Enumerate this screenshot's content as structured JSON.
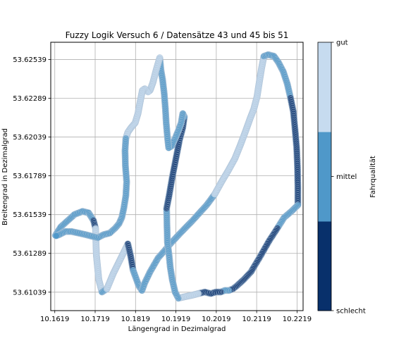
{
  "chart_data": {
    "type": "scatter",
    "title": "Fuzzy Logik Versuch 6 / Datensätze 43 und 45 bis 51",
    "xlabel": "Längengrad in Dezimalgrad",
    "ylabel": "Breitengrad in Dezimalgrad",
    "xlim": [
      10.1609,
      10.2234
    ],
    "ylim": [
      53.6092,
      53.6265
    ],
    "xticks": [
      10.1619,
      10.1719,
      10.1819,
      10.1919,
      10.2019,
      10.2119,
      10.2219
    ],
    "xtick_labels": [
      "10.1619",
      "10.1719",
      "10.1819",
      "10.1919",
      "10.2019",
      "10.2119",
      "10.2219"
    ],
    "yticks": [
      53.61039,
      53.61289,
      53.61539,
      53.61789,
      53.62039,
      53.62289,
      53.62539
    ],
    "ytick_labels": [
      "53.61039",
      "53.61289",
      "53.61539",
      "53.61789",
      "53.62039",
      "53.62289",
      "53.62539"
    ],
    "grid": true,
    "colorbar": {
      "label": "Fahrqualität",
      "levels": [
        "schlecht",
        "mittel",
        "gut"
      ],
      "colors": [
        "#08306b",
        "#4f98c9",
        "#c6dbef"
      ],
      "ticks": [
        {
          "label": "schlecht",
          "value": 0
        },
        {
          "label": "mittel",
          "value": 0.5
        },
        {
          "label": "gut",
          "value": 1
        }
      ]
    },
    "point_style": {
      "edge": "#b0c4d8",
      "alpha": 0.85
    },
    "segments": [
      {
        "quality": "mittel",
        "points": [
          [
            10.16205,
            53.61405
          ],
          [
            10.1634,
            53.6146
          ],
          [
            10.1668,
            53.6154
          ],
          [
            10.1688,
            53.6156
          ],
          [
            10.1703,
            53.6155
          ],
          [
            10.1715,
            53.615
          ]
        ]
      },
      {
        "quality": "schlecht",
        "points": [
          [
            10.1715,
            53.615
          ],
          [
            10.172,
            53.6145
          ]
        ]
      },
      {
        "quality": "gut",
        "points": [
          [
            10.172,
            53.6145
          ],
          [
            10.1722,
            53.6128
          ],
          [
            10.1728,
            53.6112
          ],
          [
            10.1736,
            53.6104
          ]
        ]
      },
      {
        "quality": "mittel",
        "points": [
          [
            10.1736,
            53.6104
          ],
          [
            10.1748,
            53.6106
          ]
        ]
      },
      {
        "quality": "gut",
        "points": [
          [
            10.1748,
            53.6106
          ],
          [
            10.1764,
            53.6116
          ],
          [
            10.1783,
            53.6126
          ],
          [
            10.18,
            53.6135
          ]
        ]
      },
      {
        "quality": "schlecht",
        "points": [
          [
            10.18,
            53.6135
          ],
          [
            10.1807,
            53.6127
          ],
          [
            10.1813,
            53.6118
          ]
        ]
      },
      {
        "quality": "mittel",
        "points": [
          [
            10.1813,
            53.6118
          ],
          [
            10.1827,
            53.6108
          ],
          [
            10.1835,
            53.6105
          ]
        ]
      },
      {
        "quality": "mittel",
        "points": [
          [
            10.1835,
            53.6105
          ],
          [
            10.1842,
            53.611
          ],
          [
            10.1855,
            53.6117
          ],
          [
            10.1875,
            53.6126
          ],
          [
            10.1892,
            53.6131
          ],
          [
            10.1905,
            53.6135
          ],
          [
            10.193,
            53.6142
          ],
          [
            10.196,
            53.615
          ],
          [
            10.1995,
            53.616
          ],
          [
            10.2015,
            53.6167
          ]
        ]
      },
      {
        "quality": "gut",
        "points": [
          [
            10.2015,
            53.6167
          ],
          [
            10.2032,
            53.6175
          ],
          [
            10.2048,
            53.6182
          ],
          [
            10.2065,
            53.619
          ],
          [
            10.2079,
            53.6199
          ],
          [
            10.2092,
            53.6208
          ],
          [
            10.2103,
            53.6216
          ],
          [
            10.2112,
            53.6222
          ],
          [
            10.212,
            53.623
          ],
          [
            10.2126,
            53.624
          ],
          [
            10.2131,
            53.6248
          ],
          [
            10.2137,
            53.6256
          ]
        ]
      },
      {
        "quality": "mittel",
        "points": [
          [
            10.2137,
            53.6256
          ],
          [
            10.2148,
            53.6257
          ],
          [
            10.2162,
            53.6256
          ],
          [
            10.2173,
            53.6252
          ],
          [
            10.2185,
            53.6246
          ],
          [
            10.2195,
            53.6238
          ],
          [
            10.2203,
            53.6229
          ]
        ]
      },
      {
        "quality": "schlecht",
        "points": [
          [
            10.2203,
            53.6229
          ],
          [
            10.221,
            53.622
          ],
          [
            10.2214,
            53.6209
          ],
          [
            10.2218,
            53.6197
          ],
          [
            10.222,
            53.6185
          ]
        ]
      },
      {
        "quality": "schlecht",
        "points": [
          [
            10.222,
            53.6185
          ],
          [
            10.2221,
            53.6172
          ],
          [
            10.2221,
            53.616
          ]
        ]
      },
      {
        "quality": "mittel",
        "points": [
          [
            10.2221,
            53.616
          ],
          [
            10.2205,
            53.6156
          ],
          [
            10.2187,
            53.6152
          ],
          [
            10.217,
            53.6145
          ]
        ]
      },
      {
        "quality": "schlecht",
        "points": [
          [
            10.217,
            53.6145
          ],
          [
            10.215,
            53.6137
          ],
          [
            10.2128,
            53.6127
          ],
          [
            10.2105,
            53.6117
          ],
          [
            10.2087,
            53.6112
          ],
          [
            10.207,
            53.6108
          ],
          [
            10.206,
            53.6106
          ],
          [
            10.205,
            53.6105
          ]
        ]
      },
      {
        "quality": "mittel",
        "points": [
          [
            10.205,
            53.6105
          ],
          [
            10.204,
            53.6105
          ],
          [
            10.203,
            53.6104
          ]
        ]
      },
      {
        "quality": "schlecht",
        "points": [
          [
            10.203,
            53.6104
          ],
          [
            10.2018,
            53.6104
          ],
          [
            10.2005,
            53.6103
          ],
          [
            10.199,
            53.6104
          ],
          [
            10.1975,
            53.6103
          ]
        ]
      },
      {
        "quality": "gut",
        "points": [
          [
            10.1975,
            53.6103
          ],
          [
            10.196,
            53.6102
          ],
          [
            10.1942,
            53.6101
          ],
          [
            10.1925,
            53.61
          ]
        ]
      },
      {
        "quality": "mittel",
        "points": [
          [
            10.1925,
            53.61
          ],
          [
            10.1917,
            53.6104
          ],
          [
            10.191,
            53.6112
          ],
          [
            10.1905,
            53.612
          ],
          [
            10.1902,
            53.6128
          ]
        ]
      },
      {
        "quality": "mittel",
        "points": [
          [
            10.1902,
            53.6128
          ],
          [
            10.1898,
            53.6136
          ],
          [
            10.1897,
            53.6146
          ],
          [
            10.1896,
            53.6158
          ]
        ]
      },
      {
        "quality": "schlecht",
        "points": [
          [
            10.1896,
            53.6158
          ],
          [
            10.1902,
            53.6166
          ],
          [
            10.191,
            53.6178
          ],
          [
            10.1919,
            53.619
          ],
          [
            10.1928,
            53.6202
          ],
          [
            10.1936,
            53.621
          ],
          [
            10.194,
            53.6217
          ]
        ]
      },
      {
        "quality": "mittel",
        "points": [
          [
            10.194,
            53.6217
          ],
          [
            10.1936,
            53.6219
          ],
          [
            10.1932,
            53.6213
          ],
          [
            10.1925,
            53.6208
          ],
          [
            10.1917,
            53.6203
          ],
          [
            10.1908,
            53.6198
          ]
        ]
      },
      {
        "quality": "mittel",
        "points": [
          [
            10.1908,
            53.6198
          ],
          [
            10.1901,
            53.6197
          ],
          [
            10.1898,
            53.6204
          ],
          [
            10.1895,
            53.6213
          ],
          [
            10.1893,
            53.6222
          ],
          [
            10.189,
            53.6232
          ],
          [
            10.1886,
            53.6241
          ],
          [
            10.1882,
            53.6247
          ],
          [
            10.1879,
            53.6255
          ]
        ]
      },
      {
        "quality": "gut",
        "points": [
          [
            10.1879,
            53.6255
          ],
          [
            10.187,
            53.6247
          ],
          [
            10.1862,
            53.6239
          ],
          [
            10.1855,
            53.6234
          ],
          [
            10.185,
            53.6233
          ]
        ]
      },
      {
        "quality": "gut",
        "points": [
          [
            10.185,
            53.6233
          ],
          [
            10.1842,
            53.6235
          ],
          [
            10.1836,
            53.6234
          ],
          [
            10.183,
            53.6226
          ],
          [
            10.1825,
            53.6219
          ],
          [
            10.1818,
            53.6213
          ],
          [
            10.1808,
            53.621
          ],
          [
            10.18,
            53.6207
          ],
          [
            10.1795,
            53.6203
          ]
        ]
      },
      {
        "quality": "mittel",
        "points": [
          [
            10.1795,
            53.6203
          ],
          [
            10.1793,
            53.6195
          ],
          [
            10.1794,
            53.6185
          ],
          [
            10.1797,
            53.6175
          ],
          [
            10.1795,
            53.6166
          ],
          [
            10.179,
            53.6158
          ],
          [
            10.1785,
            53.6152
          ],
          [
            10.1778,
            53.6148
          ],
          [
            10.1768,
            53.6145
          ],
          [
            10.1755,
            53.6142
          ],
          [
            10.174,
            53.6141
          ],
          [
            10.1725,
            53.6139
          ],
          [
            10.171,
            53.614
          ],
          [
            10.1695,
            53.6141
          ],
          [
            10.1678,
            53.6142
          ],
          [
            10.166,
            53.6143
          ],
          [
            10.1645,
            53.6143
          ],
          [
            10.163,
            53.6141
          ],
          [
            10.162,
            53.614
          ]
        ]
      }
    ]
  }
}
